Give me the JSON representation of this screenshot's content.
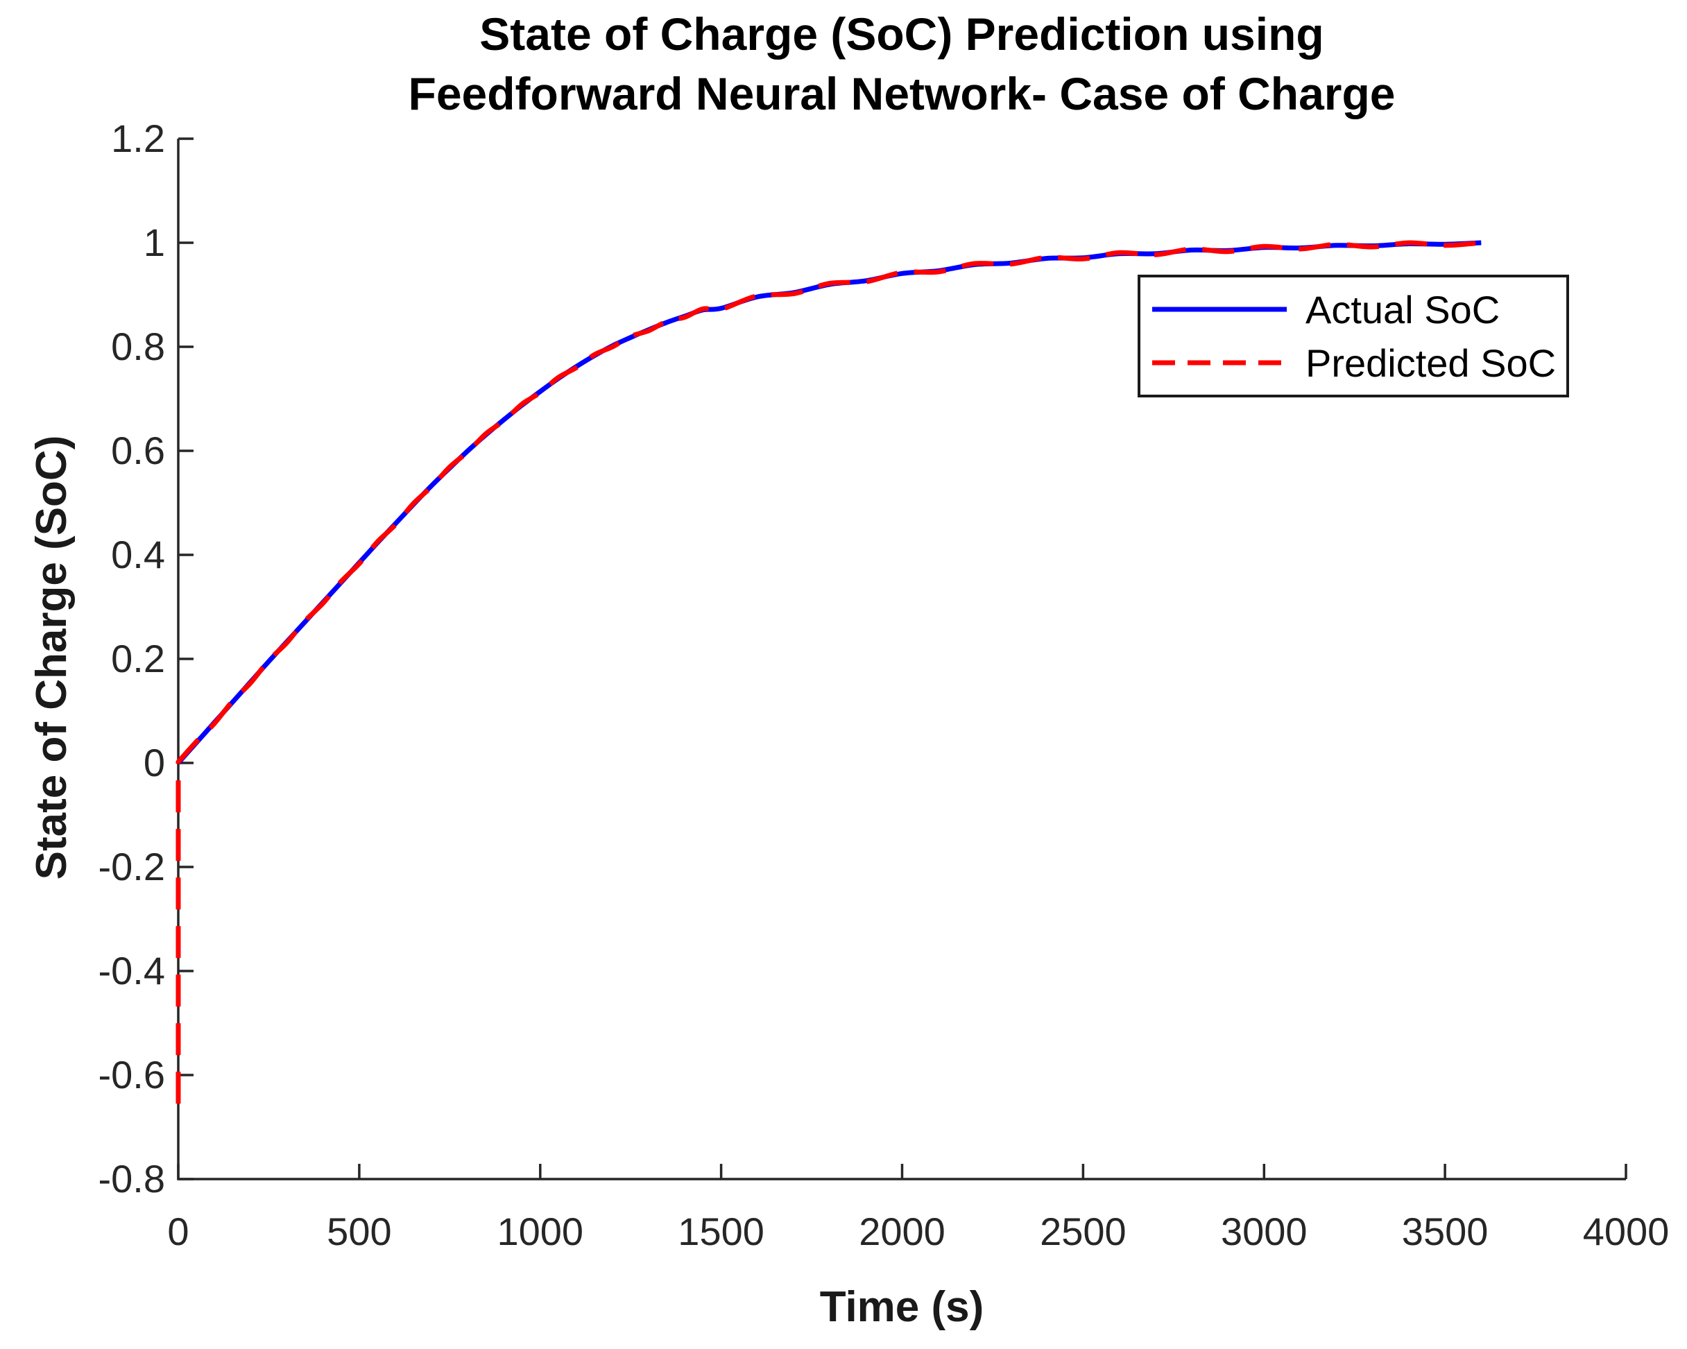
{
  "title": {
    "line1": "State of Charge (SoC) Prediction using",
    "line2": "Feedforward Neural Network- Case of Charge"
  },
  "axes": {
    "xlabel": "Time (s)",
    "ylabel": "State of Charge (SoC)",
    "x_tick_values": [
      0,
      500,
      1000,
      1500,
      2000,
      2500,
      3000,
      3500,
      4000
    ],
    "x_tick_labels": [
      "0",
      "500",
      "1000",
      "1500",
      "2000",
      "2500",
      "3000",
      "3500",
      "4000"
    ],
    "y_tick_values": [
      -0.8,
      -0.6,
      -0.4,
      -0.2,
      0,
      0.2,
      0.4,
      0.6,
      0.8,
      1,
      1.2
    ],
    "y_tick_labels": [
      "-0.8",
      "-0.6",
      "-0.4",
      "-0.2",
      "0",
      "0.2",
      "0.4",
      "0.6",
      "0.8",
      "1",
      "1.2"
    ]
  },
  "colors": {
    "actual": "#0000ff",
    "predicted": "#ff0000",
    "axis": "#262626",
    "background": "#ffffff"
  },
  "legend": {
    "items": [
      {
        "label": "Actual SoC",
        "color": "#0000ff",
        "style": "solid"
      },
      {
        "label": "Predicted SoC",
        "color": "#ff0000",
        "style": "dashed"
      }
    ]
  },
  "chart_data": {
    "type": "line",
    "title": "State of Charge (SoC) Prediction using Feedforward Neural Network- Case of Charge",
    "xlabel": "Time (s)",
    "ylabel": "State of Charge (SoC)",
    "xlim": [
      0,
      4000
    ],
    "ylim": [
      -0.8,
      1.2
    ],
    "grid": false,
    "legend_position": "northeast",
    "series": [
      {
        "name": "Actual SoC",
        "color": "#0000ff",
        "style": "solid",
        "x": [
          0,
          50,
          100,
          150,
          200,
          250,
          300,
          350,
          400,
          450,
          500,
          550,
          600,
          650,
          700,
          750,
          800,
          850,
          900,
          950,
          1000,
          1050,
          1100,
          1150,
          1200,
          1250,
          1300,
          1350,
          1400,
          1450,
          1500,
          1600,
          1700,
          1800,
          1900,
          2000,
          2100,
          2200,
          2300,
          2400,
          2500,
          2600,
          2700,
          2800,
          2900,
          3000,
          3100,
          3200,
          3300,
          3400,
          3500,
          3600
        ],
        "y": [
          0,
          0.039,
          0.078,
          0.117,
          0.156,
          0.195,
          0.233,
          0.271,
          0.309,
          0.347,
          0.385,
          0.423,
          0.46,
          0.497,
          0.533,
          0.567,
          0.6,
          0.631,
          0.66,
          0.688,
          0.714,
          0.739,
          0.762,
          0.783,
          0.802,
          0.818,
          0.833,
          0.847,
          0.859,
          0.871,
          0.874,
          0.896,
          0.904,
          0.92,
          0.927,
          0.941,
          0.946,
          0.958,
          0.961,
          0.97,
          0.971,
          0.979,
          0.979,
          0.986,
          0.985,
          0.991,
          0.99,
          0.995,
          0.994,
          0.998,
          0.997,
          1.0
        ]
      },
      {
        "name": "Predicted SoC",
        "color": "#ff0000",
        "style": "dashed",
        "lead_segment": {
          "x": 0,
          "y_from": -0.655,
          "y_to": 0.002
        },
        "x": [
          0,
          50,
          100,
          150,
          200,
          250,
          300,
          350,
          400,
          450,
          500,
          550,
          600,
          650,
          700,
          750,
          800,
          850,
          900,
          950,
          1000,
          1050,
          1100,
          1150,
          1200,
          1250,
          1300,
          1350,
          1400,
          1450,
          1500,
          1600,
          1700,
          1800,
          1900,
          2000,
          2100,
          2200,
          2300,
          2400,
          2500,
          2600,
          2700,
          2800,
          2900,
          3000,
          3100,
          3200,
          3300,
          3400,
          3500,
          3600
        ],
        "y": [
          0.002,
          0.041,
          0.076,
          0.119,
          0.154,
          0.197,
          0.231,
          0.273,
          0.307,
          0.349,
          0.383,
          0.425,
          0.458,
          0.499,
          0.531,
          0.569,
          0.598,
          0.633,
          0.658,
          0.69,
          0.712,
          0.741,
          0.76,
          0.785,
          0.8,
          0.82,
          0.831,
          0.849,
          0.857,
          0.873,
          0.872,
          0.898,
          0.902,
          0.922,
          0.925,
          0.943,
          0.944,
          0.96,
          0.959,
          0.972,
          0.969,
          0.981,
          0.977,
          0.988,
          0.983,
          0.993,
          0.988,
          0.997,
          0.992,
          1.0,
          0.995,
          1.0
        ]
      }
    ]
  }
}
